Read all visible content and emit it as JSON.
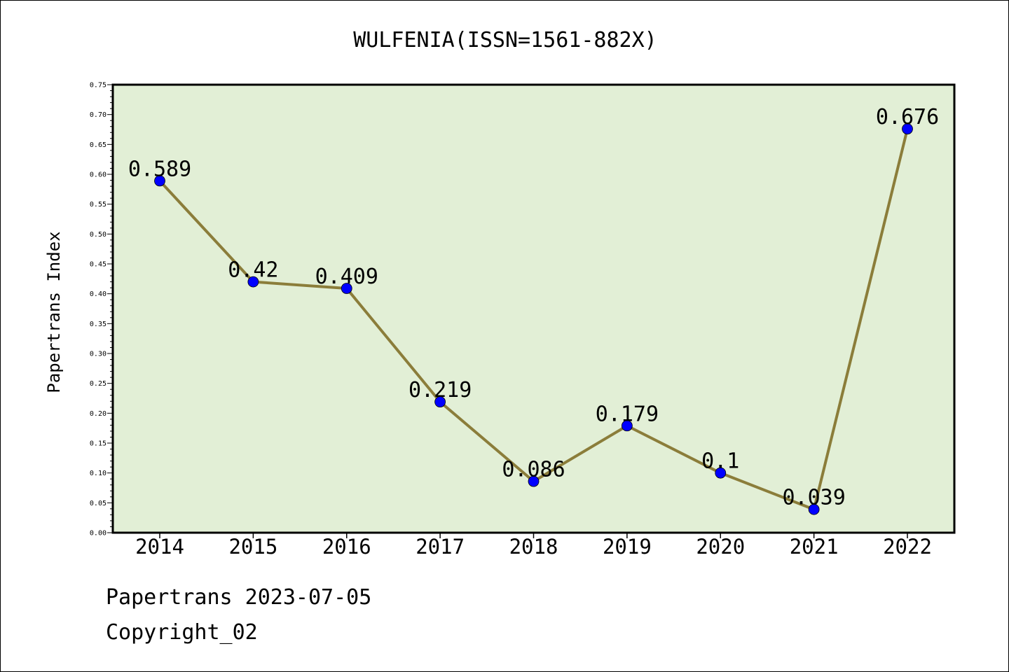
{
  "chart_data": {
    "type": "line",
    "title": "WULFENIA(ISSN=1561-882X)",
    "xlabel": "",
    "ylabel": "Papertrans Index",
    "categories": [
      "2014",
      "2015",
      "2016",
      "2017",
      "2018",
      "2019",
      "2020",
      "2021",
      "2022"
    ],
    "series": [
      {
        "values": [
          0.589,
          0.42,
          0.409,
          0.219,
          0.086,
          0.179,
          0.1,
          0.039,
          0.676
        ]
      }
    ],
    "data_labels": [
      "0.589",
      "0.42",
      "0.409",
      "0.219",
      "0.086",
      "0.179",
      "0.1",
      "0.039",
      "0.676"
    ],
    "ylim": [
      0,
      0.75
    ],
    "y_ticks": [
      "0.00",
      "0.05",
      "0.10",
      "0.15",
      "0.20",
      "0.25",
      "0.30",
      "0.35",
      "0.40",
      "0.45",
      "0.50",
      "0.55",
      "0.60",
      "0.65",
      "0.70",
      "0.75"
    ],
    "grid": false,
    "colors": {
      "line": "#8b7d3a",
      "marker": "#0000ff",
      "plot_background": "#e2efd6",
      "axis": "#000000"
    }
  },
  "footer": {
    "line1": "Papertrans 2023-07-05",
    "line2": "Copyright_02"
  }
}
